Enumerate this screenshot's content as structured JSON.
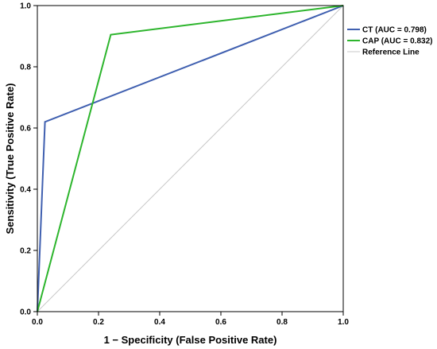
{
  "chart_data": {
    "type": "line",
    "xlabel": "1 − Specificity (False Positive Rate)",
    "ylabel": "Sensitivity (True Positive Rate)",
    "xlim": [
      0,
      1
    ],
    "ylim": [
      0,
      1
    ],
    "x_ticks": [
      "0.0",
      "0.2",
      "0.4",
      "0.6",
      "0.8",
      "1.0"
    ],
    "y_ticks": [
      "0.0",
      "0.2",
      "0.4",
      "0.6",
      "0.8",
      "1.0"
    ],
    "grid": false,
    "legend_position": "right",
    "series": [
      {
        "name": "CT (AUC = 0.798)",
        "color": "#4060b0",
        "x": [
          0,
          0.025,
          1.0
        ],
        "y": [
          0,
          0.62,
          1.0
        ]
      },
      {
        "name": "CAP (AUC = 0.832)",
        "color": "#2db52d",
        "x": [
          0,
          0.24,
          1.0
        ],
        "y": [
          0,
          0.905,
          1.0
        ]
      },
      {
        "name": "Reference Line",
        "color": "#c8c8c8",
        "x": [
          0,
          1.0
        ],
        "y": [
          0,
          1.0
        ]
      }
    ]
  }
}
